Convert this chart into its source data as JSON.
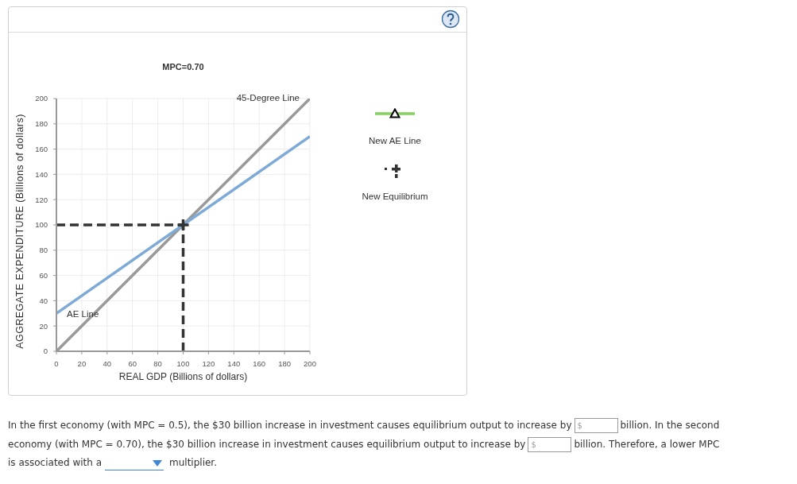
{
  "chart_data": {
    "type": "line",
    "title": "MPC=0.70",
    "xlabel": "REAL GDP (Billions of dollars)",
    "ylabel": "AGGREGATE EXPENDITURE (Billions of dollars)",
    "series": [
      {
        "name": "45-Degree Line",
        "color": "#999999",
        "x": [
          0,
          200
        ],
        "values": [
          0,
          200
        ]
      },
      {
        "name": "AE Line",
        "color": "#7eaad7",
        "x": [
          0,
          200
        ],
        "values": [
          30,
          170
        ]
      },
      {
        "color": "#333333",
        "line_style": "dashed",
        "x": [
          0,
          100
        ],
        "values": [
          100,
          100
        ]
      },
      {
        "color": "#333333",
        "line_style": "dashed",
        "x": [
          100,
          100
        ],
        "values": [
          0,
          100
        ]
      },
      {
        "type": "scatter",
        "color": "#333333",
        "marker": "cross",
        "x": [
          100
        ],
        "values": [
          100
        ]
      }
    ],
    "xlim": [
      0,
      200
    ],
    "ylim": [
      0,
      200
    ],
    "xticks": [
      0,
      20,
      40,
      60,
      80,
      100,
      120,
      140,
      160,
      180,
      200
    ],
    "yticks": [
      0,
      20,
      40,
      60,
      80,
      100,
      120,
      140,
      160,
      180,
      200
    ],
    "grid": true,
    "marker": "none",
    "line_style": "solid",
    "annotations": [
      "New AE Line",
      "New Equilibrium",
      "In the first economy (with MPC = 0.5), the $30 billion increase in investment causes equilibrium output to increase by",
      "$",
      "billion. In the second",
      "economy (with MPC = 0.70), the $30 billion increase in investment causes equilibrium output to increase by",
      "$",
      "billion. Therefore, a lower MPC",
      "is associated with a",
      "multiplier."
    ]
  }
}
